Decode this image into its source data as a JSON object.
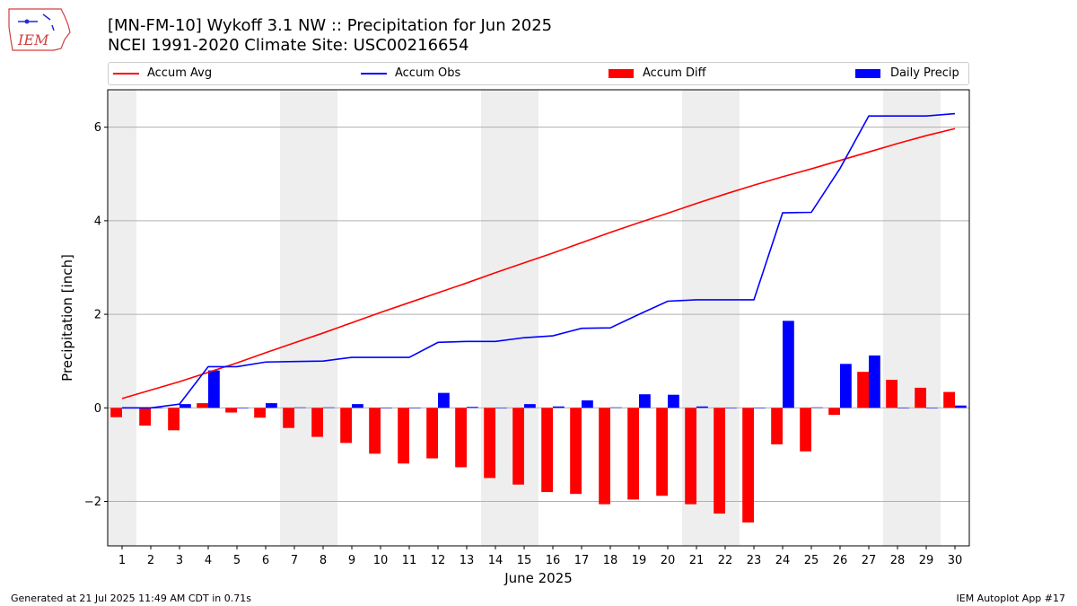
{
  "header": {
    "title_line1": "[MN-FM-10] Wykoff 3.1 NW :: Precipitation for Jun 2025",
    "title_line2": "NCEI 1991-2020 Climate Site: USC00216654",
    "logo_text": "IEM"
  },
  "legend": {
    "accum_avg": "Accum Avg",
    "accum_obs": "Accum Obs",
    "accum_diff": "Accum Diff",
    "daily_precip": "Daily Precip",
    "placement": "top (above plot, full width)"
  },
  "colors": {
    "accum_avg": "#ff0000",
    "accum_obs": "#0000ff",
    "accum_diff": "#ff0000",
    "daily_precip": "#0000ff",
    "weekend_shade": "#eeeeee",
    "grid": "#b0b0b0"
  },
  "footer": {
    "left": "Generated at 21 Jul 2025 11:49 AM CDT in 0.71s",
    "right": "IEM Autoplot App #17"
  },
  "chart_data": {
    "type": "bar",
    "xlabel": "June 2025",
    "ylabel": "Precipitation [inch]",
    "ylim": [
      -2.95,
      6.8
    ],
    "yticks": [
      -2,
      0,
      2,
      4,
      6
    ],
    "grid": "horizontal",
    "categories": [
      "1",
      "2",
      "3",
      "4",
      "5",
      "6",
      "7",
      "8",
      "9",
      "10",
      "11",
      "12",
      "13",
      "14",
      "15",
      "16",
      "17",
      "18",
      "19",
      "20",
      "21",
      "22",
      "23",
      "24",
      "25",
      "26",
      "27",
      "28",
      "29",
      "30"
    ],
    "weekend_days": [
      1,
      7,
      8,
      14,
      15,
      21,
      22,
      28,
      29
    ],
    "series": [
      {
        "name": "Accum Avg",
        "kind": "line",
        "values": [
          0.2,
          0.38,
          0.56,
          0.76,
          0.96,
          1.18,
          1.39,
          1.6,
          1.82,
          2.04,
          2.25,
          2.46,
          2.67,
          2.89,
          3.1,
          3.31,
          3.53,
          3.75,
          3.96,
          4.16,
          4.37,
          4.57,
          4.76,
          4.94,
          5.11,
          5.29,
          5.47,
          5.65,
          5.82,
          5.97
        ]
      },
      {
        "name": "Accum Obs",
        "kind": "line",
        "values": [
          0.0,
          0.0,
          0.08,
          0.88,
          0.88,
          0.98,
          0.99,
          1.0,
          1.08,
          1.08,
          1.08,
          1.4,
          1.42,
          1.42,
          1.5,
          1.54,
          1.7,
          1.71,
          2.0,
          2.28,
          2.31,
          2.31,
          2.31,
          4.17,
          4.18,
          5.12,
          6.24,
          6.24,
          6.24,
          6.29
        ]
      },
      {
        "name": "Accum Diff",
        "kind": "bar",
        "values": [
          -0.2,
          -0.38,
          -0.48,
          0.1,
          -0.1,
          -0.21,
          -0.43,
          -0.62,
          -0.75,
          -0.98,
          -1.19,
          -1.08,
          -1.27,
          -1.5,
          -1.64,
          -1.8,
          -1.84,
          -2.06,
          -1.96,
          -1.88,
          -2.06,
          -2.26,
          -2.45,
          -0.78,
          -0.93,
          -0.15,
          0.77,
          0.6,
          0.43,
          0.34
        ]
      },
      {
        "name": "Daily Precip",
        "kind": "bar",
        "values": [
          0.0,
          0.0,
          0.08,
          0.8,
          0.0,
          0.1,
          0.01,
          0.01,
          0.08,
          0.0,
          0.0,
          0.32,
          0.02,
          0.0,
          0.08,
          0.03,
          0.16,
          0.01,
          0.29,
          0.28,
          0.03,
          0.0,
          0.0,
          1.86,
          0.01,
          0.94,
          1.12,
          0.0,
          0.0,
          0.05
        ]
      }
    ]
  }
}
